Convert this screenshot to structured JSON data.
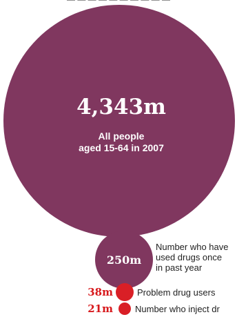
{
  "header": {
    "title_fragment": "— — — — — — — — — —"
  },
  "colors": {
    "purple": "#80375f",
    "red": "#d91f26",
    "red_text": "#d7191c"
  },
  "chart_data": {
    "type": "bubble",
    "unit": "m",
    "circles": [
      {
        "value": 4343,
        "value_label": "4,343m",
        "label_lines": [
          "All people",
          "aged 15-64 in 2007"
        ],
        "color": "purple"
      },
      {
        "value": 250,
        "value_label": "250m",
        "label_lines": [
          "Number who have",
          "used drugs once",
          "in past year"
        ],
        "color": "purple"
      },
      {
        "value": 38,
        "value_label": "38m",
        "label_lines": [
          "Problem drug users"
        ],
        "color": "red"
      },
      {
        "value": 21,
        "value_label": "21m",
        "label_lines": [
          "Number who inject dr"
        ],
        "color": "red"
      }
    ]
  }
}
